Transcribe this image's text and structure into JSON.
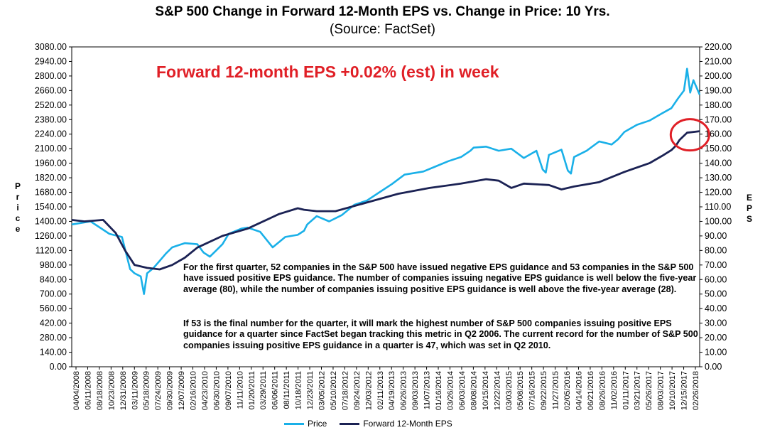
{
  "chart_data": {
    "type": "line",
    "title": "S&P 500 Change in Forward 12-Month EPS vs. Change in Price: 10 Yrs.",
    "subtitle": "(Source: FactSet)",
    "annotation": "Forward 12-month EPS +0.02% (est) in week",
    "ylabel_left": "Price",
    "ylabel_right": "EPS",
    "ylim_left": [
      0,
      3080
    ],
    "ylim_right": [
      0,
      220
    ],
    "yticks_left": [
      "3080.00",
      "2940.00",
      "2800.00",
      "2660.00",
      "2520.00",
      "2380.00",
      "2240.00",
      "2100.00",
      "1960.00",
      "1820.00",
      "1680.00",
      "1540.00",
      "1400.00",
      "1260.00",
      "1120.00",
      "980.00",
      "840.00",
      "700.00",
      "560.00",
      "420.00",
      "280.00",
      "140.00",
      "0.00"
    ],
    "yticks_right": [
      "220.00",
      "210.00",
      "200.00",
      "190.00",
      "180.00",
      "170.00",
      "160.00",
      "150.00",
      "140.00",
      "130.00",
      "120.00",
      "110.00",
      "100.00",
      "90.00",
      "80.00",
      "70.00",
      "60.00",
      "50.00",
      "40.00",
      "30.00",
      "20.00",
      "10.00",
      "0.00"
    ],
    "xticks": [
      "04/04/2008",
      "06/11/2008",
      "08/18/2008",
      "10/23/2008",
      "12/31/2008",
      "03/11/2009",
      "05/18/2009",
      "07/24/2009",
      "09/30/2009",
      "12/07/2009",
      "02/16/2010",
      "04/23/2010",
      "06/30/2010",
      "09/07/2010",
      "11/11/2010",
      "01/20/2011",
      "03/29/2011",
      "06/06/2011",
      "08/11/2011",
      "10/18/2011",
      "12/23/2011",
      "03/05/2012",
      "05/10/2012",
      "07/18/2012",
      "09/24/2012",
      "12/03/2012",
      "02/11/2013",
      "04/19/2013",
      "06/26/2013",
      "09/03/2013",
      "11/07/2013",
      "01/16/2014",
      "03/26/2014",
      "06/03/2014",
      "08/08/2014",
      "10/15/2014",
      "12/22/2014",
      "03/03/2015",
      "05/08/2015",
      "07/16/2015",
      "09/22/2015",
      "11/27/2015",
      "02/05/2016",
      "04/14/2016",
      "06/21/2016",
      "08/26/2016",
      "11/02/2016",
      "01/11/2017",
      "03/21/2017",
      "05/26/2017",
      "08/03/2017",
      "10/10/2017",
      "12/15/2017",
      "02/26/2018"
    ],
    "series": [
      {
        "name": "Price",
        "color": "#1ab0e8",
        "axis": "left",
        "x": [
          0,
          0.03,
          0.06,
          0.08,
          0.093,
          0.1,
          0.11,
          0.115,
          0.12,
          0.13,
          0.14,
          0.15,
          0.16,
          0.18,
          0.2,
          0.21,
          0.22,
          0.23,
          0.24,
          0.25,
          0.27,
          0.28,
          0.3,
          0.32,
          0.34,
          0.36,
          0.37,
          0.375,
          0.39,
          0.41,
          0.43,
          0.45,
          0.47,
          0.49,
          0.51,
          0.53,
          0.56,
          0.58,
          0.6,
          0.62,
          0.635,
          0.64,
          0.66,
          0.68,
          0.7,
          0.72,
          0.74,
          0.75,
          0.755,
          0.76,
          0.78,
          0.79,
          0.795,
          0.8,
          0.82,
          0.84,
          0.86,
          0.87,
          0.88,
          0.9,
          0.92,
          0.94,
          0.955,
          0.965,
          0.975,
          0.98,
          0.985,
          0.99,
          1.0
        ],
        "values": [
          1370,
          1400,
          1280,
          1250,
          940,
          900,
          870,
          700,
          900,
          950,
          1020,
          1090,
          1150,
          1190,
          1180,
          1100,
          1060,
          1120,
          1180,
          1280,
          1330,
          1340,
          1300,
          1150,
          1250,
          1270,
          1310,
          1370,
          1450,
          1400,
          1460,
          1560,
          1600,
          1680,
          1760,
          1850,
          1880,
          1930,
          1980,
          2020,
          2080,
          2110,
          2120,
          2080,
          2100,
          2010,
          2080,
          1900,
          1870,
          2040,
          2090,
          1890,
          1860,
          2020,
          2080,
          2170,
          2140,
          2190,
          2260,
          2330,
          2370,
          2440,
          2490,
          2580,
          2660,
          2870,
          2640,
          2760,
          2620
        ]
      },
      {
        "name": "Forward 12-Month EPS",
        "color": "#1b2254",
        "axis": "right",
        "x": [
          0,
          0.02,
          0.05,
          0.07,
          0.085,
          0.1,
          0.12,
          0.14,
          0.16,
          0.18,
          0.2,
          0.24,
          0.28,
          0.33,
          0.36,
          0.37,
          0.39,
          0.42,
          0.47,
          0.52,
          0.57,
          0.62,
          0.66,
          0.68,
          0.7,
          0.72,
          0.76,
          0.78,
          0.8,
          0.84,
          0.88,
          0.92,
          0.94,
          0.955,
          0.962,
          0.968,
          0.98,
          1.0
        ],
        "values": [
          101,
          100,
          101,
          92,
          80,
          70,
          68,
          67,
          70,
          75,
          82,
          90,
          95,
          105,
          109,
          108,
          107,
          107,
          113,
          119,
          123,
          126,
          129,
          128,
          123,
          126,
          125,
          122,
          124,
          127,
          134,
          140,
          145,
          149,
          152,
          156,
          161,
          162
        ]
      }
    ]
  },
  "notes": {
    "paragraph1": "For the first quarter, 52 companies in the S&P 500 have issued negative EPS guidance and 53 companies in the S&P 500 have issued positive EPS guidance. The number of companies issuing negative EPS guidance is well below the five-year average (80), while the number of companies issuing positive EPS guidance is well above the five-year average (28).",
    "paragraph2": "If 53 is the final number for the quarter, it will mark the highest number of S&P 500 companies issuing positive EPS guidance for a quarter since FactSet began tracking this metric in Q2 2006. The current record for the number of S&P 500 companies issuing positive EPS guidance in a quarter is 47, which was set in Q2 2010."
  },
  "axis_titles": {
    "left": [
      "P",
      "r",
      "i",
      "c",
      "e"
    ],
    "right": [
      "E",
      "P",
      "S"
    ]
  },
  "legend": {
    "price_label": "Price",
    "eps_label": "Forward 12-Month EPS"
  },
  "colors": {
    "highlight_circle": "#e01f26",
    "annotation": "#e01f26"
  }
}
